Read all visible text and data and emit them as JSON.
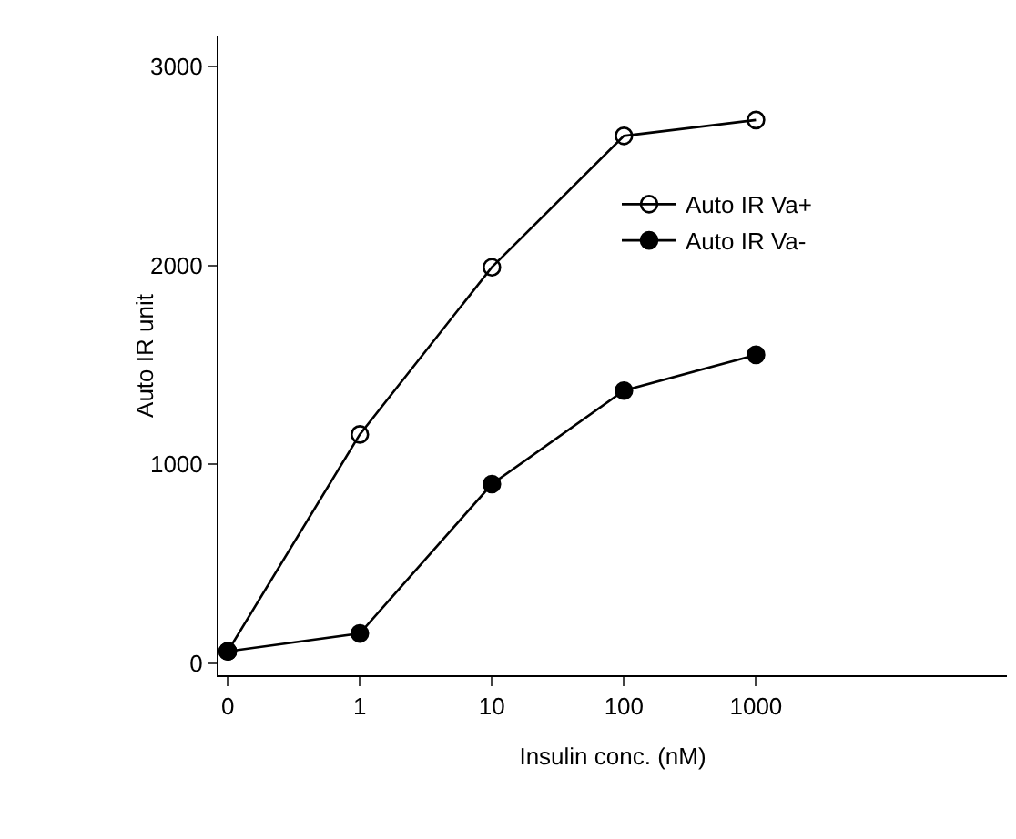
{
  "chart_data": {
    "type": "line",
    "xlabel": "Insulin conc. (nM)",
    "ylabel": "Auto IR unit",
    "categories": [
      "0",
      "1",
      "10",
      "100",
      "1000"
    ],
    "ylim": [
      -60,
      3150
    ],
    "yticks": [
      0,
      1000,
      2000,
      3000
    ],
    "grid": false,
    "legend": "top right",
    "line_style": "solid",
    "series": [
      {
        "name": "Auto IR Va+",
        "color": "#000000",
        "marker": "circle-open",
        "values": [
          60,
          1150,
          1990,
          2650,
          2730
        ]
      },
      {
        "name": "Auto IR Va-",
        "color": "#000000",
        "marker": "circle",
        "values": [
          60,
          150,
          900,
          1370,
          1550
        ]
      }
    ]
  }
}
